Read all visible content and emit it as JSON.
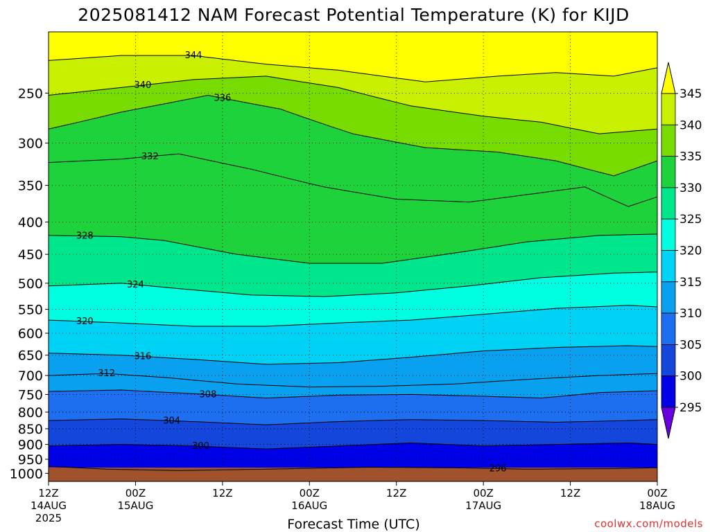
{
  "chart_data": {
    "type": "contour",
    "title": "2025081412 NAM Forecast Potential Temperature (K) for KIJD",
    "xlabel": "Forecast Time (UTC)",
    "ylabel": "",
    "credit": "coolwx.com/models",
    "y_scale": "log-pressure",
    "y_range_hpa": [
      1030,
      200
    ],
    "y_ticks": [
      "250",
      "300",
      "350",
      "400",
      "450",
      "500",
      "550",
      "600",
      "650",
      "700",
      "750",
      "800",
      "850",
      "900",
      "950",
      "1000"
    ],
    "x_ticks": [
      {
        "hour": 0,
        "line1": "12Z",
        "line2": "14AUG",
        "line3": "2025"
      },
      {
        "hour": 12,
        "line1": "00Z",
        "line2": "15AUG",
        "line3": ""
      },
      {
        "hour": 24,
        "line1": "12Z",
        "line2": "",
        "line3": ""
      },
      {
        "hour": 36,
        "line1": "00Z",
        "line2": "16AUG",
        "line3": ""
      },
      {
        "hour": 48,
        "line1": "12Z",
        "line2": "",
        "line3": ""
      },
      {
        "hour": 60,
        "line1": "00Z",
        "line2": "17AUG",
        "line3": ""
      },
      {
        "hour": 72,
        "line1": "12Z",
        "line2": "",
        "line3": ""
      },
      {
        "hour": 84,
        "line1": "00Z",
        "line2": "18AUG",
        "line3": ""
      }
    ],
    "colorbar": {
      "ticks": [
        "295",
        "300",
        "305",
        "310",
        "315",
        "320",
        "325",
        "330",
        "335",
        "340",
        "345"
      ],
      "levels": [
        295,
        300,
        305,
        310,
        315,
        320,
        325,
        330,
        335,
        340,
        345
      ],
      "colors": [
        "#6a00e0",
        "#0000e6",
        "#1446dc",
        "#1e6ef0",
        "#0aa0f0",
        "#00d2f5",
        "#00ffe0",
        "#00e68c",
        "#1ed23c",
        "#78dc00",
        "#c8f000",
        "#ffff00"
      ]
    },
    "ground_color": "#a0522d",
    "isentropes": [
      {
        "theta": 296,
        "label": "296",
        "points": [
          [
            0,
            975
          ],
          [
            8,
            985
          ],
          [
            18,
            990
          ],
          [
            30,
            985
          ],
          [
            44,
            978
          ],
          [
            56,
            980
          ],
          [
            66,
            985
          ],
          [
            78,
            983
          ],
          [
            84,
            980
          ]
        ],
        "label_hour": 62
      },
      {
        "theta": 300,
        "label": "300",
        "points": [
          [
            0,
            905
          ],
          [
            10,
            900
          ],
          [
            20,
            905
          ],
          [
            30,
            915
          ],
          [
            40,
            905
          ],
          [
            50,
            895
          ],
          [
            60,
            905
          ],
          [
            70,
            900
          ],
          [
            80,
            895
          ],
          [
            84,
            900
          ]
        ],
        "label_hour": 21
      },
      {
        "theta": 304,
        "label": "304",
        "points": [
          [
            0,
            825
          ],
          [
            10,
            820
          ],
          [
            20,
            828
          ],
          [
            30,
            838
          ],
          [
            40,
            828
          ],
          [
            50,
            822
          ],
          [
            60,
            825
          ],
          [
            70,
            830
          ],
          [
            80,
            825
          ],
          [
            84,
            822
          ]
        ],
        "label_hour": 17
      },
      {
        "theta": 308,
        "label": "308",
        "points": [
          [
            0,
            742
          ],
          [
            10,
            738
          ],
          [
            20,
            748
          ],
          [
            30,
            760
          ],
          [
            40,
            752
          ],
          [
            50,
            750
          ],
          [
            60,
            755
          ],
          [
            68,
            760
          ],
          [
            76,
            745
          ],
          [
            84,
            740
          ]
        ],
        "label_hour": 22
      },
      {
        "theta": 312,
        "label": "312",
        "points": [
          [
            0,
            700
          ],
          [
            8,
            695
          ],
          [
            16,
            705
          ],
          [
            26,
            722
          ],
          [
            36,
            730
          ],
          [
            46,
            728
          ],
          [
            56,
            722
          ],
          [
            66,
            710
          ],
          [
            76,
            700
          ],
          [
            84,
            695
          ]
        ],
        "label_hour": 8
      },
      {
        "theta": 316,
        "label": "316",
        "points": [
          [
            0,
            645
          ],
          [
            10,
            650
          ],
          [
            20,
            660
          ],
          [
            30,
            672
          ],
          [
            40,
            668
          ],
          [
            50,
            655
          ],
          [
            60,
            640
          ],
          [
            70,
            632
          ],
          [
            80,
            628
          ],
          [
            84,
            630
          ]
        ],
        "label_hour": 13
      },
      {
        "theta": 320,
        "label": "320",
        "points": [
          [
            0,
            572
          ],
          [
            10,
            578
          ],
          [
            20,
            585
          ],
          [
            30,
            585
          ],
          [
            40,
            578
          ],
          [
            50,
            572
          ],
          [
            60,
            560
          ],
          [
            70,
            548
          ],
          [
            80,
            542
          ],
          [
            84,
            545
          ]
        ],
        "label_hour": 5
      },
      {
        "theta": 324,
        "label": "324",
        "points": [
          [
            0,
            505
          ],
          [
            10,
            500
          ],
          [
            18,
            510
          ],
          [
            28,
            522
          ],
          [
            38,
            525
          ],
          [
            48,
            518
          ],
          [
            58,
            505
          ],
          [
            68,
            490
          ],
          [
            78,
            482
          ],
          [
            84,
            480
          ]
        ],
        "label_hour": 12
      },
      {
        "theta": 328,
        "label": "328",
        "points": [
          [
            0,
            420
          ],
          [
            10,
            422
          ],
          [
            16,
            428
          ],
          [
            26,
            450
          ],
          [
            36,
            465
          ],
          [
            46,
            465
          ],
          [
            56,
            448
          ],
          [
            66,
            430
          ],
          [
            76,
            420
          ],
          [
            84,
            418
          ]
        ],
        "label_hour": 5
      },
      {
        "theta": 332,
        "label": "332",
        "points": [
          [
            0,
            322
          ],
          [
            10,
            318
          ],
          [
            18,
            312
          ],
          [
            28,
            330
          ],
          [
            38,
            352
          ],
          [
            48,
            368
          ],
          [
            58,
            372
          ],
          [
            66,
            362
          ],
          [
            74,
            352
          ],
          [
            80,
            378
          ],
          [
            84,
            365
          ]
        ],
        "label_hour": 14
      },
      {
        "theta": 336,
        "label": "336",
        "points": [
          [
            0,
            285
          ],
          [
            10,
            268
          ],
          [
            22,
            252
          ],
          [
            32,
            265
          ],
          [
            42,
            290
          ],
          [
            52,
            305
          ],
          [
            62,
            310
          ],
          [
            70,
            320
          ],
          [
            78,
            338
          ],
          [
            84,
            320
          ]
        ],
        "label_hour": 24
      },
      {
        "theta": 340,
        "label": "340",
        "points": [
          [
            0,
            252
          ],
          [
            10,
            245
          ],
          [
            20,
            238
          ],
          [
            30,
            235
          ],
          [
            40,
            245
          ],
          [
            50,
            262
          ],
          [
            60,
            272
          ],
          [
            68,
            278
          ],
          [
            76,
            290
          ],
          [
            84,
            285
          ]
        ],
        "label_hour": 13
      },
      {
        "theta": 344,
        "label": "344",
        "points": [
          [
            0,
            222
          ],
          [
            10,
            218
          ],
          [
            20,
            218
          ],
          [
            30,
            225
          ],
          [
            40,
            230
          ],
          [
            52,
            240
          ],
          [
            62,
            235
          ],
          [
            70,
            232
          ],
          [
            78,
            235
          ],
          [
            84,
            228
          ]
        ],
        "label_hour": 20
      }
    ]
  }
}
